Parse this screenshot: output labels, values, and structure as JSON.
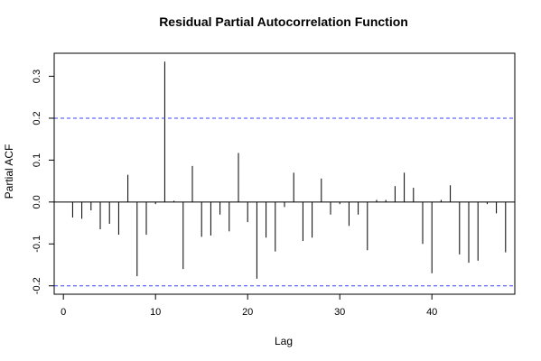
{
  "chart_data": {
    "type": "bar",
    "title": "Residual Partial Autocorrelation Function",
    "xlabel": "Lag",
    "ylabel": "Partial ACF",
    "xlim": [
      -1,
      49
    ],
    "ylim": [
      -0.22,
      0.355
    ],
    "x_ticks": [
      0,
      10,
      20,
      30,
      40
    ],
    "y_ticks": [
      -0.2,
      -0.1,
      0.0,
      0.1,
      0.2,
      0.3
    ],
    "y_tick_labels": [
      "-0.2",
      "-0.1",
      "0.0",
      "0.1",
      "0.2",
      "0.3"
    ],
    "confidence_bounds": [
      0.2,
      -0.2
    ],
    "bound_color": "#4040ff",
    "bar_color": "#000000",
    "grid": false,
    "lags": [
      1,
      2,
      3,
      4,
      5,
      6,
      7,
      8,
      9,
      10,
      11,
      12,
      13,
      14,
      15,
      16,
      17,
      18,
      19,
      20,
      21,
      22,
      23,
      24,
      25,
      26,
      27,
      28,
      29,
      30,
      31,
      32,
      33,
      34,
      35,
      36,
      37,
      38,
      39,
      40,
      41,
      42,
      43,
      44,
      45,
      46,
      47,
      48
    ],
    "values": [
      -0.037,
      -0.04,
      -0.02,
      -0.065,
      -0.052,
      -0.078,
      0.065,
      -0.177,
      -0.078,
      -0.005,
      0.335,
      0.003,
      -0.16,
      0.086,
      -0.083,
      -0.08,
      -0.03,
      -0.07,
      0.117,
      -0.048,
      -0.183,
      -0.085,
      -0.118,
      -0.012,
      0.07,
      -0.093,
      -0.085,
      0.056,
      -0.03,
      -0.005,
      -0.057,
      -0.03,
      -0.115,
      0.005,
      0.005,
      0.038,
      0.07,
      0.034,
      -0.1,
      -0.17,
      0.005,
      0.04,
      -0.125,
      -0.145,
      -0.14,
      -0.005,
      -0.027,
      -0.12
    ]
  }
}
